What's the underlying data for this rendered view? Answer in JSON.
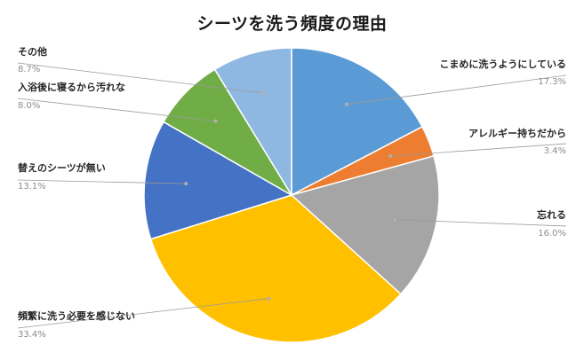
{
  "chart_data": {
    "type": "pie",
    "title": "シーツを洗う頻度の理由",
    "unit": "%",
    "start": "12 o'clock, clockwise",
    "slices": [
      {
        "label": "こまめに洗うようにしている",
        "value": 17.3,
        "pct_text": "17.3%",
        "color": "#5B9BD5"
      },
      {
        "label": "アレルギー持ちだから",
        "value": 3.4,
        "pct_text": "3.4%",
        "color": "#ED7D31"
      },
      {
        "label": "忘れる",
        "value": 16.0,
        "pct_text": "16.0%",
        "color": "#A5A5A5"
      },
      {
        "label": "頻繁に洗う必要を感じない",
        "value": 33.4,
        "pct_text": "33.4%",
        "color": "#FFC000"
      },
      {
        "label": "替えのシーツが無い",
        "value": 13.1,
        "pct_text": "13.1%",
        "color": "#4472C4"
      },
      {
        "label": "入浴後に寝るから汚れな",
        "value": 8.0,
        "pct_text": "8.0%",
        "color": "#70AD47"
      },
      {
        "label": "その他",
        "value": 8.7,
        "pct_text": "8.7%",
        "color": "#8EB8E2"
      }
    ],
    "legend": "none (data labels with leader lines)"
  }
}
